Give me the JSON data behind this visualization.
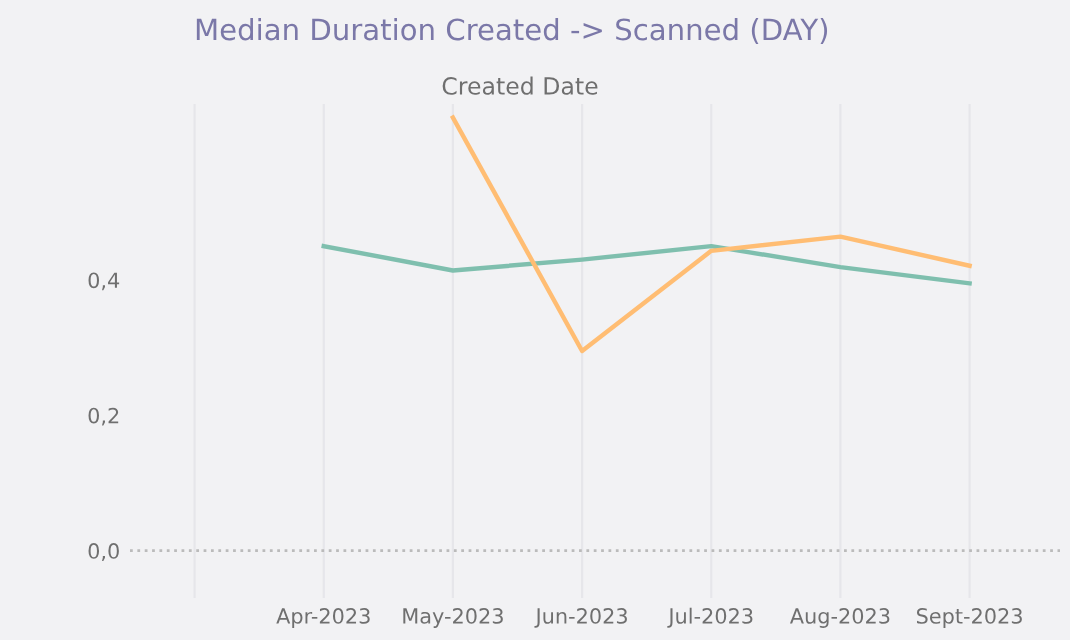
{
  "chart_data": {
    "type": "line",
    "title": "Median Duration Created -> Scanned (DAY)",
    "x2label": "Created Date",
    "categories": [
      null,
      "Apr-2023",
      "May-2023",
      "Jun-2023",
      "Jul-2023",
      "Aug-2023",
      "Sept-2023"
    ],
    "series": [
      {
        "color": "#7fbfae",
        "values": [
          null,
          0.45,
          0.414,
          0.43,
          0.45,
          0.419,
          0.395
        ]
      },
      {
        "color": "#ffbd73",
        "values": [
          null,
          null,
          0.64,
          0.295,
          0.443,
          0.464,
          0.421
        ]
      }
    ],
    "ylim": [
      -0.07,
      0.66
    ],
    "yticks": [
      {
        "value": 0,
        "label": "0,0"
      },
      {
        "value": 0.2,
        "label": "0,2"
      },
      {
        "value": 0.4,
        "label": "0,4"
      }
    ],
    "ref_lines": [
      {
        "axis": "y",
        "value": 0,
        "color": "#bbbbbb",
        "line_style": "dotted"
      }
    ],
    "grid": "x",
    "legend": false,
    "marker": "none",
    "line_style": "solid"
  }
}
